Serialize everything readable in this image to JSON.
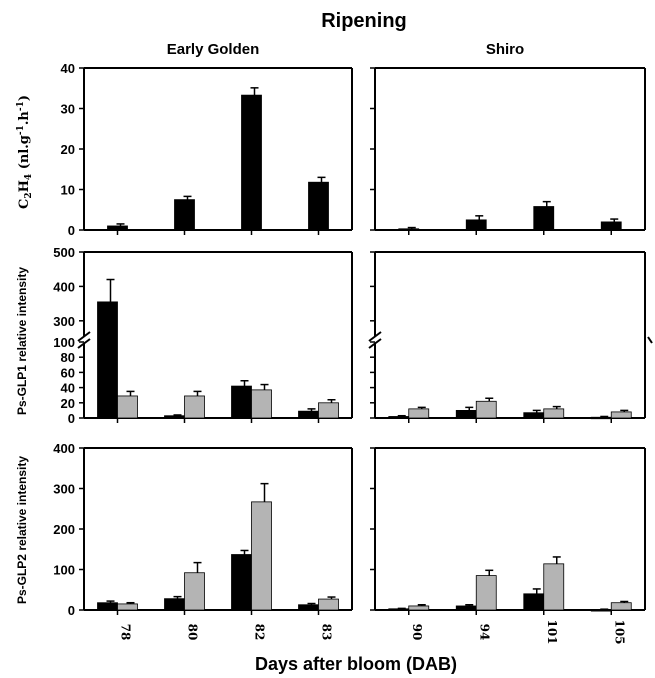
{
  "figure": {
    "title": "Ripening",
    "xlabel": "Days after bloom (DAB)",
    "columns": [
      "Early Golden",
      "Shiro"
    ],
    "colors": {
      "black_series": "#000000",
      "gray_series": "#b4b4b4",
      "axis": "#000000"
    }
  },
  "chart_data": [
    {
      "type": "bar",
      "panel": "C2H4 - Early Golden",
      "column": "Early Golden",
      "ylabel": "C2H4 (nl.g-1.h-1)",
      "ylim": [
        0,
        40
      ],
      "yticks": [
        0,
        10,
        20,
        30,
        40
      ],
      "categories": [
        "78",
        "80",
        "82",
        "83"
      ],
      "series": [
        {
          "color": "#000000",
          "values": [
            1.0,
            7.5,
            33.3,
            11.8
          ],
          "errors": [
            0.5,
            0.8,
            1.8,
            1.2
          ]
        }
      ]
    },
    {
      "type": "bar",
      "panel": "C2H4 - Shiro",
      "column": "Shiro",
      "ylim": [
        0,
        40
      ],
      "categories": [
        "90",
        "94",
        "101",
        "105"
      ],
      "series": [
        {
          "color": "#000000",
          "values": [
            0.3,
            2.5,
            5.8,
            2.0
          ],
          "errors": [
            0.3,
            1.0,
            1.2,
            0.7
          ]
        }
      ]
    },
    {
      "type": "bar",
      "panel": "Ps-GLP1 - Early Golden",
      "column": "Early Golden",
      "ylabel": "Ps-GLP1 relative intensity",
      "ylim": [
        0,
        500
      ],
      "axis_break": [
        100,
        250
      ],
      "yticks_lower": [
        0,
        20,
        40,
        60,
        80,
        100
      ],
      "yticks_upper": [
        300,
        400,
        500
      ],
      "categories": [
        "78",
        "80",
        "82",
        "83"
      ],
      "series": [
        {
          "color": "#000000",
          "values": [
            355,
            3,
            42,
            9
          ],
          "errors": [
            65,
            1,
            7,
            3
          ]
        },
        {
          "color": "#b4b4b4",
          "values": [
            29,
            29,
            37,
            20
          ],
          "errors": [
            6,
            6,
            7,
            4
          ]
        }
      ]
    },
    {
      "type": "bar",
      "panel": "Ps-GLP1 - Shiro",
      "column": "Shiro",
      "ylim": [
        0,
        500
      ],
      "axis_break": [
        100,
        250
      ],
      "categories": [
        "90",
        "94",
        "101",
        "105"
      ],
      "series": [
        {
          "color": "#000000",
          "values": [
            2,
            10,
            7,
            1
          ],
          "errors": [
            1,
            4,
            3,
            1
          ]
        },
        {
          "color": "#b4b4b4",
          "values": [
            12,
            22,
            12,
            8
          ],
          "errors": [
            2,
            4,
            3,
            2
          ]
        }
      ]
    },
    {
      "type": "bar",
      "panel": "Ps-GLP2 - Early Golden",
      "column": "Early Golden",
      "ylabel": "Ps-GLP2 relative intensity",
      "ylim": [
        0,
        400
      ],
      "yticks": [
        0,
        100,
        200,
        300,
        400
      ],
      "categories": [
        "78",
        "80",
        "82",
        "83"
      ],
      "series": [
        {
          "color": "#000000",
          "values": [
            18,
            28,
            137,
            13
          ],
          "errors": [
            4,
            5,
            10,
            3
          ]
        },
        {
          "color": "#b4b4b4",
          "values": [
            15,
            92,
            267,
            27
          ],
          "errors": [
            3,
            25,
            45,
            5
          ]
        }
      ]
    },
    {
      "type": "bar",
      "panel": "Ps-GLP2 - Shiro",
      "column": "Shiro",
      "ylim": [
        0,
        400
      ],
      "categories": [
        "90",
        "94",
        "101",
        "105"
      ],
      "series": [
        {
          "color": "#000000",
          "values": [
            3,
            10,
            40,
            1
          ],
          "errors": [
            1,
            3,
            12,
            1
          ]
        },
        {
          "color": "#b4b4b4",
          "values": [
            10,
            85,
            114,
            18
          ],
          "errors": [
            3,
            13,
            17,
            3
          ]
        }
      ]
    }
  ]
}
